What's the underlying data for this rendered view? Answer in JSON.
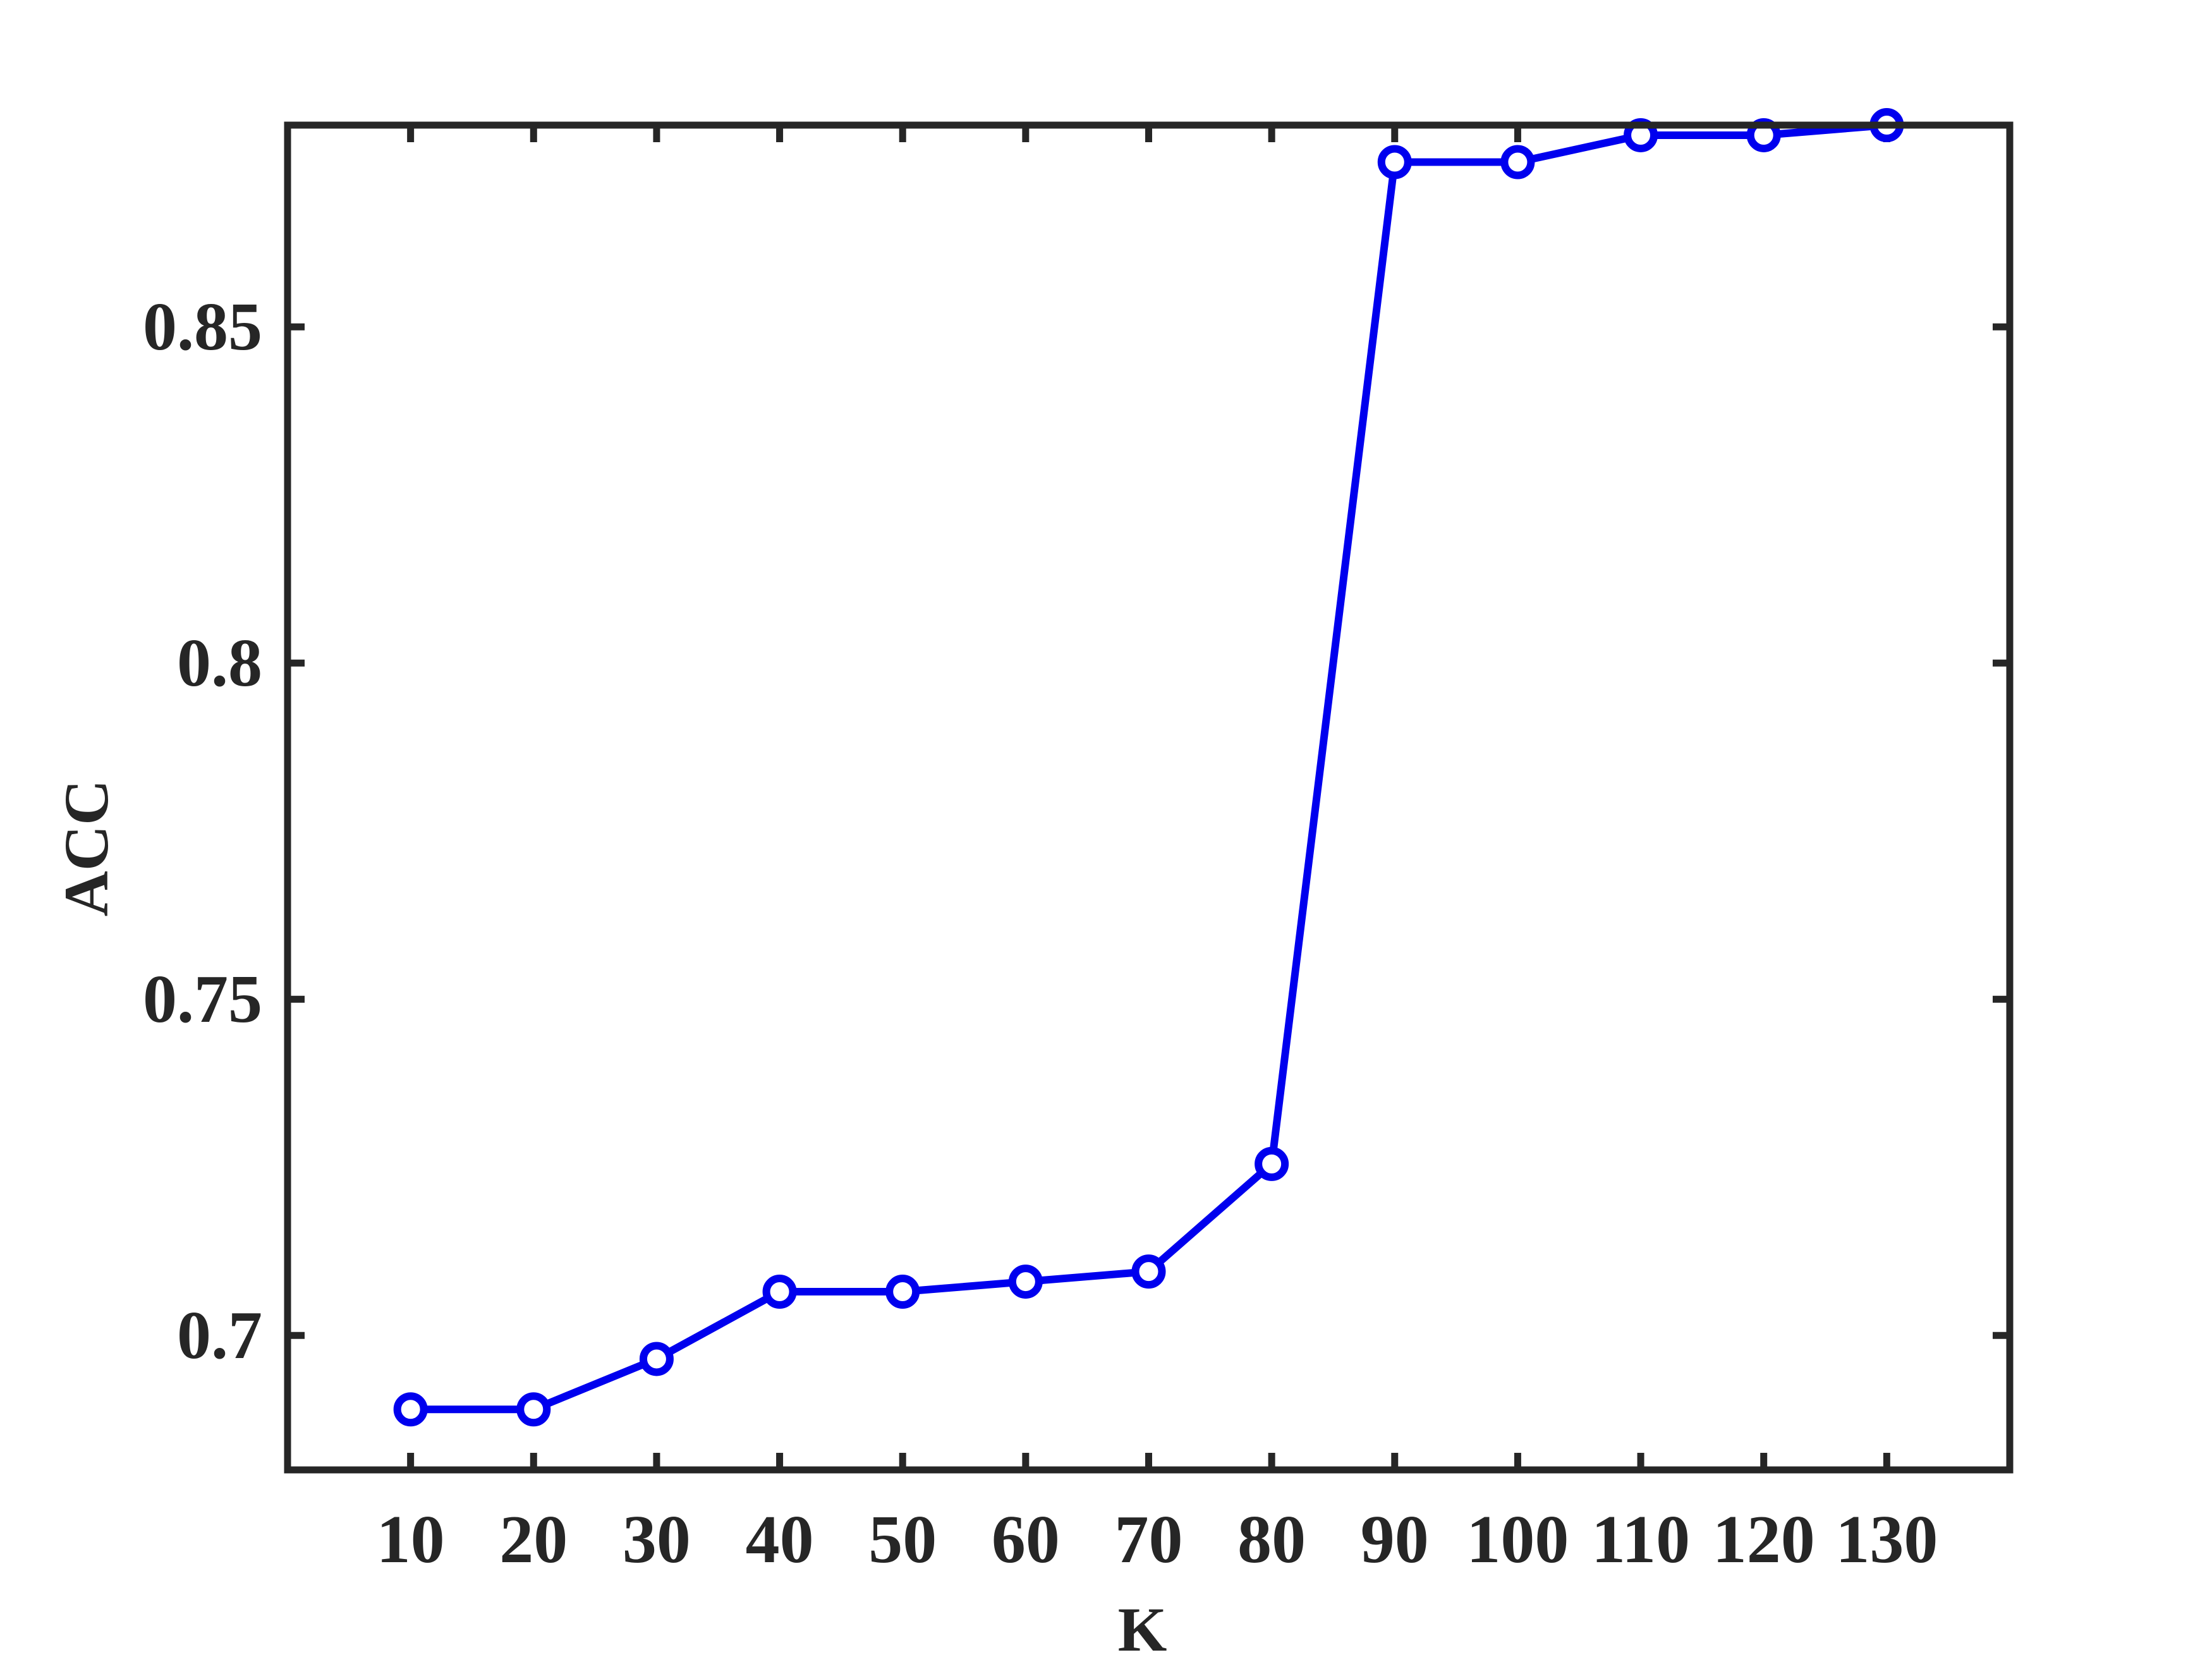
{
  "chart_data": {
    "type": "line",
    "title": "",
    "xlabel": "K",
    "ylabel": "ACC",
    "x": [
      10,
      20,
      30,
      40,
      50,
      60,
      70,
      80,
      90,
      100,
      110,
      120,
      130
    ],
    "series": [
      {
        "values": [
          0.689,
          0.689,
          0.6965,
          0.7065,
          0.7065,
          0.708,
          0.7095,
          0.7255,
          0.8745,
          0.8745,
          0.8785,
          0.8785,
          0.88
        ]
      }
    ],
    "xlim": [
      0,
      140
    ],
    "ylim": [
      0.68,
      0.88
    ],
    "xticks": [
      "10",
      "20",
      "30",
      "40",
      "50",
      "60",
      "70",
      "80",
      "90",
      "100",
      "110",
      "120",
      "130"
    ],
    "yticks": [
      "0.7",
      "0.75",
      "0.8",
      "0.85"
    ],
    "ytick_values": [
      0.7,
      0.75,
      0.8,
      0.85
    ],
    "line_color": "#0000EE",
    "axis_color": "#262626",
    "marker": "circle",
    "grid": false,
    "legend": false
  }
}
